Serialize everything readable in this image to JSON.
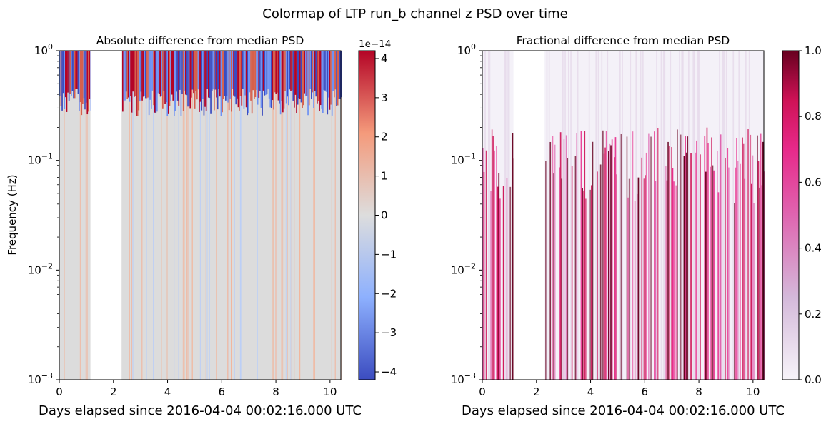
{
  "figure": {
    "suptitle": "Colormap of LTP run_b channel z PSD over time"
  },
  "chart_data": [
    {
      "type": "heatmap",
      "title": "Absolute difference from median PSD",
      "xlabel": "Days elapsed since 2016-04-04 00:02:16.000 UTC",
      "ylabel": "Frequency (Hz)",
      "xlim": [
        0,
        10.4
      ],
      "ylim": [
        0.001,
        1
      ],
      "yscale": "log",
      "x_ticks": [
        0,
        2,
        4,
        6,
        8,
        10
      ],
      "x_tick_labels": [
        "0",
        "2",
        "4",
        "6",
        "8",
        "10"
      ],
      "y_ticks": [
        0.001,
        0.01,
        0.1,
        1
      ],
      "y_tick_labels": [
        "10^-3",
        "10^-2",
        "10^-1",
        "10^0"
      ],
      "data_gap_days": [
        1.15,
        2.3
      ],
      "colormap": "coolwarm",
      "colorbar": {
        "range": [
          -4.2,
          4.2
        ],
        "ticks": [
          -4,
          -3,
          -2,
          -1,
          0,
          1,
          2,
          3,
          4
        ],
        "tick_labels": [
          "−4",
          "−3",
          "−2",
          "−1",
          "0",
          "1",
          "2",
          "3",
          "4"
        ],
        "offset_label": "1e−14"
      }
    },
    {
      "type": "heatmap",
      "title": "Fractional difference from median PSD",
      "xlabel": "Days elapsed since 2016-04-04 00:02:16.000 UTC",
      "ylabel": "",
      "xlim": [
        0,
        10.4
      ],
      "ylim": [
        0.001,
        1
      ],
      "yscale": "log",
      "x_ticks": [
        0,
        2,
        4,
        6,
        8,
        10
      ],
      "x_tick_labels": [
        "0",
        "2",
        "4",
        "6",
        "8",
        "10"
      ],
      "y_ticks": [
        0.001,
        0.01,
        0.1,
        1
      ],
      "y_tick_labels": [
        "10^-3",
        "10^-2",
        "10^-1",
        "10^0"
      ],
      "data_gap_days": [
        1.15,
        2.3
      ],
      "colormap": "PuRd",
      "colorbar": {
        "range": [
          0,
          1
        ],
        "ticks": [
          0,
          0.2,
          0.4,
          0.6,
          0.8,
          1.0
        ],
        "tick_labels": [
          "0.0",
          "0.2",
          "0.4",
          "0.6",
          "0.8",
          "1.0"
        ],
        "offset_label": ""
      }
    }
  ],
  "colors": {
    "coolwarm_low": "#3b4cc0",
    "coolwarm_mid": "#dddddd",
    "coolwarm_high": "#b40426",
    "purd_low": "#f7f4f9",
    "purd_mid": "#e7298a",
    "purd_high": "#67001f",
    "gap": "#ffffff"
  }
}
